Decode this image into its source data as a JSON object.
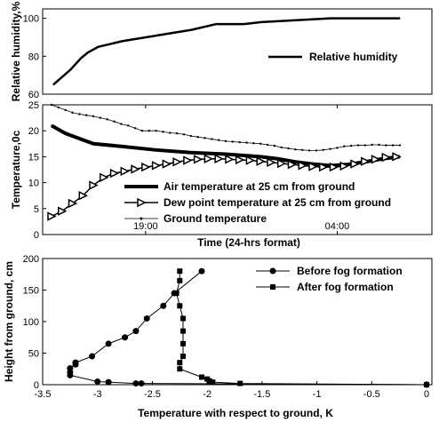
{
  "chart_data": [
    {
      "type": "line",
      "ylabel": "Relative humidity,%",
      "ylim": [
        60,
        105
      ],
      "xlim": [
        0,
        100
      ],
      "yticks": [
        60,
        80,
        100
      ],
      "grid": false,
      "legend_placement": "center-right",
      "series": [
        {
          "name": "Relative humidity",
          "color": "#000000",
          "x": [
            0,
            5,
            8,
            10,
            13,
            20,
            30,
            40,
            47,
            50,
            55,
            60,
            70,
            80,
            90,
            100
          ],
          "y": [
            65,
            73,
            79,
            82,
            85,
            88,
            91,
            94,
            97,
            97,
            97,
            98,
            99,
            100,
            100,
            100
          ]
        }
      ]
    },
    {
      "type": "line",
      "ylabel": "Temperature,0c",
      "xlabel": "Time (24-hrs format)",
      "ylim": [
        0,
        25
      ],
      "xlim": [
        0,
        100
      ],
      "yticks": [
        0,
        5,
        10,
        15,
        20,
        25
      ],
      "xticks": [
        {
          "x": 27,
          "label": "19:00"
        },
        {
          "x": 82,
          "label": "04:00"
        }
      ],
      "grid": false,
      "legend_placement": "bottom-center",
      "series": [
        {
          "name": "Air temperature at 25 cm from ground",
          "color": "#000000",
          "x": [
            0,
            4,
            8,
            12,
            20,
            30,
            40,
            50,
            60,
            65,
            70,
            75,
            80,
            85,
            90,
            95,
            100
          ],
          "y": [
            21,
            19.5,
            18.5,
            17.5,
            17,
            16.3,
            15.8,
            15.5,
            15,
            14.6,
            14,
            13.6,
            13.3,
            13.5,
            14,
            14.6,
            15
          ]
        },
        {
          "name": "Dew point temperature at 25 cm from ground",
          "color": "#000000",
          "x": [
            0,
            3,
            6,
            9,
            12,
            15,
            18,
            21,
            24,
            27,
            30,
            33,
            36,
            39,
            42,
            45,
            48,
            51,
            54,
            57,
            60,
            63,
            66,
            69,
            72,
            75,
            78,
            81,
            84,
            87,
            90,
            93,
            96,
            99
          ],
          "y": [
            3.5,
            4.5,
            6,
            7.5,
            9.5,
            11,
            11.8,
            12.2,
            12.6,
            13,
            13.3,
            13.6,
            14,
            14.3,
            14.5,
            14.6,
            14.6,
            14.5,
            14.4,
            14.3,
            14.1,
            13.9,
            13.7,
            13.5,
            13.3,
            13.1,
            13,
            13,
            13.2,
            13.6,
            14.1,
            14.5,
            14.9,
            15
          ]
        },
        {
          "name": "Ground temperature",
          "color": "#000000",
          "x": [
            0,
            2,
            4,
            6,
            8,
            10,
            12,
            14,
            16,
            18,
            20,
            22,
            24,
            26,
            28,
            30,
            32,
            34,
            36,
            38,
            40,
            42,
            44,
            46,
            48,
            50,
            52,
            54,
            56,
            58,
            60,
            62,
            64,
            66,
            68,
            70,
            72,
            74,
            76,
            78,
            80,
            82,
            84,
            86,
            88,
            90,
            92,
            94,
            96,
            98,
            100
          ],
          "y": [
            25,
            24.5,
            24,
            23.5,
            23.2,
            23,
            22.8,
            22.5,
            22.2,
            21.8,
            21.3,
            21,
            20.5,
            20,
            20,
            20,
            19.8,
            19.6,
            19.5,
            19.3,
            19,
            18.8,
            18.6,
            18.4,
            18.2,
            18,
            17.9,
            17.8,
            17.7,
            17.6,
            17.5,
            17.3,
            17.1,
            16.8,
            16.6,
            16.4,
            16.3,
            16.2,
            16.2,
            16.3,
            16.5,
            16.7,
            17,
            17.1,
            17.2,
            17.2,
            17.3,
            17.3,
            17.2,
            17.2,
            17.2
          ]
        }
      ]
    },
    {
      "type": "line",
      "xlabel": "Temperature with respect to ground, K",
      "ylabel": "Height from ground, cm",
      "xlim": [
        -3.5,
        0
      ],
      "ylim": [
        0,
        200
      ],
      "xticks": [
        -3.5,
        -3,
        -2.5,
        -2,
        -1.5,
        -1,
        -0.5,
        0
      ],
      "yticks": [
        0,
        50,
        100,
        150,
        200
      ],
      "grid": false,
      "legend_placement": "top-right",
      "series": [
        {
          "name": "Before fog formation",
          "color": "#000000",
          "marker": "circle",
          "points": [
            [
              -2.05,
              180
            ],
            [
              -2.3,
              145
            ],
            [
              -2.4,
              125
            ],
            [
              -2.55,
              105
            ],
            [
              -2.65,
              85
            ],
            [
              -2.75,
              75
            ],
            [
              -2.9,
              65
            ],
            [
              -3.05,
              45
            ],
            [
              -3.2,
              35
            ],
            [
              -3.2,
              32
            ],
            [
              -3.25,
              26
            ],
            [
              -3.25,
              20
            ],
            [
              -3.25,
              15
            ],
            [
              -3.0,
              5
            ],
            [
              -2.9,
              4
            ],
            [
              -2.65,
              2
            ],
            [
              -2.6,
              2
            ],
            [
              0,
              0
            ]
          ]
        },
        {
          "name": "After fog formation",
          "color": "#000000",
          "marker": "square",
          "points": [
            [
              -2.25,
              180
            ],
            [
              -2.25,
              165
            ],
            [
              -2.28,
              145
            ],
            [
              -2.25,
              125
            ],
            [
              -2.22,
              105
            ],
            [
              -2.22,
              85
            ],
            [
              -2.22,
              65
            ],
            [
              -2.22,
              45
            ],
            [
              -2.25,
              35
            ],
            [
              -2.25,
              25
            ],
            [
              -2.05,
              12
            ],
            [
              -2.0,
              9
            ],
            [
              -1.98,
              6
            ],
            [
              -1.95,
              4
            ],
            [
              -1.7,
              2
            ],
            [
              0,
              0
            ]
          ]
        }
      ]
    }
  ]
}
